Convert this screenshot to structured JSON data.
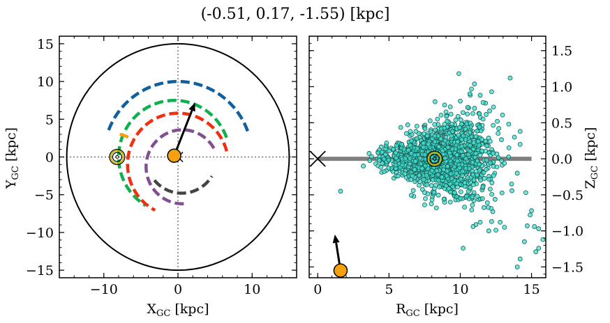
{
  "title": "(-0.51, 0.17, -1.55) [kpc]",
  "chart_data": [
    {
      "type": "line",
      "name": "galactic-plane-xy",
      "xlabel": "X",
      "xlabel_sub": "GC",
      "xlabel_unit": " [kpc]",
      "ylabel": "Y",
      "ylabel_sub": "GC",
      "ylabel_unit": " [kpc]",
      "xlim": [
        -16,
        16
      ],
      "ylim": [
        -16,
        16
      ],
      "xticks": [
        -10,
        0,
        10
      ],
      "yticks": [
        -15,
        -10,
        -5,
        0,
        5,
        10,
        15
      ],
      "xtick_labels": [
        "−10",
        "0",
        "10"
      ],
      "ytick_labels": [
        "−15",
        "−10",
        "−5",
        "0",
        "5",
        "10",
        "15"
      ],
      "outer_circle_radius": 15,
      "spiral_arms": [
        {
          "color": "#1060a0",
          "center": [
            0,
            0
          ],
          "radius": 10.0,
          "theta_start": 20,
          "theta_end": 163
        },
        {
          "color": "#10b050",
          "center": [
            -0.5,
            0
          ],
          "radius": 7.5,
          "theta_start": 20,
          "theta_end": 240
        },
        {
          "color": "#f03010",
          "center": [
            0,
            -1
          ],
          "radius": 6.8,
          "theta_start": 15,
          "theta_end": 245
        },
        {
          "color": "#805090",
          "center": [
            0.6,
            -1.3
          ],
          "radius": 4.9,
          "theta_start": 30,
          "theta_end": 275
        },
        {
          "color": "#444444",
          "center": [
            0.5,
            0
          ],
          "radius": 4.8,
          "theta_start": 220,
          "theta_end": 330
        },
        {
          "color": "#f5a010",
          "center": [
            -8.2,
            0
          ],
          "radius": 3.0,
          "theta_start": 60,
          "theta_end": 90
        }
      ],
      "sun": [
        -8.2,
        0
      ],
      "object": [
        -0.51,
        0.17
      ],
      "velocity_arrow_end": [
        2.3,
        7.2
      ],
      "gc_marker": [
        0,
        0
      ]
    },
    {
      "type": "scatter",
      "name": "rz-plane",
      "xlabel": "R",
      "xlabel_sub": "GC",
      "xlabel_unit": " [kpc]",
      "ylabel": "Z",
      "ylabel_sub": "GC",
      "ylabel_unit": " [kpc]",
      "xlim": [
        -0.6,
        16
      ],
      "ylim": [
        -1.65,
        1.7
      ],
      "xticks": [
        0,
        5,
        10,
        15
      ],
      "yticks": [
        -1.5,
        -1.0,
        -0.5,
        0.0,
        0.5,
        1.0,
        1.5
      ],
      "xtick_labels": [
        "0",
        "5",
        "10",
        "15"
      ],
      "ytick_labels": [
        "−1.5",
        "−1.0",
        "−0.5",
        "0.0",
        "0.5",
        "1.0",
        "1.5"
      ],
      "disk_line": [
        0,
        15
      ],
      "gc_marker": [
        0,
        0
      ],
      "sun": [
        8.2,
        0
      ],
      "object": [
        1.6,
        -1.55
      ],
      "velocity_arrow_end": [
        1.2,
        -1.05
      ],
      "point_color": "#40e0d0",
      "outliers": [
        [
          9.9,
          1.18
        ],
        [
          13.5,
          1.12
        ],
        [
          12.2,
          0.93
        ],
        [
          11.4,
          0.88
        ],
        [
          11.6,
          0.78
        ],
        [
          9.3,
          0.72
        ],
        [
          14.2,
          0.38
        ],
        [
          13.4,
          0.48
        ],
        [
          12.6,
          0.52
        ],
        [
          14.6,
          -0.47
        ],
        [
          15.0,
          -0.72
        ],
        [
          14.9,
          -0.78
        ],
        [
          14.7,
          -0.93
        ],
        [
          15.2,
          -0.94
        ],
        [
          15.5,
          -0.97
        ],
        [
          15.8,
          -1.12
        ],
        [
          14.5,
          -1.15
        ],
        [
          15.3,
          -1.29
        ],
        [
          15.5,
          -1.24
        ],
        [
          14.2,
          -1.39
        ],
        [
          14.0,
          -1.5
        ],
        [
          13.1,
          -0.95
        ],
        [
          12.5,
          -0.99
        ],
        [
          12.2,
          -0.87
        ],
        [
          12.8,
          -0.88
        ],
        [
          12.0,
          -1.0
        ],
        [
          11.9,
          -0.61
        ],
        [
          12.1,
          -0.42
        ],
        [
          11.2,
          -0.52
        ],
        [
          10.3,
          -0.67
        ],
        [
          10.8,
          -0.71
        ],
        [
          10.2,
          -1.24
        ],
        [
          10.9,
          -0.94
        ],
        [
          11.4,
          -0.88
        ],
        [
          10.0,
          -0.55
        ],
        [
          9.3,
          -0.6
        ],
        [
          7.5,
          -0.64
        ],
        [
          9.6,
          -0.47
        ],
        [
          1.6,
          -0.45
        ],
        [
          3.2,
          -0.1
        ],
        [
          6.5,
          0.38
        ],
        [
          8.9,
          0.48
        ],
        [
          10.5,
          0.62
        ],
        [
          11.6,
          0.55
        ],
        [
          12.7,
          0.42
        ],
        [
          13.8,
          0.3
        ],
        [
          14.2,
          0.2
        ],
        [
          14.0,
          -0.2
        ],
        [
          13.6,
          -0.35
        ],
        [
          11.0,
          0.7
        ],
        [
          10.0,
          0.8
        ],
        [
          9.0,
          0.65
        ],
        [
          8.4,
          0.55
        ]
      ]
    }
  ]
}
